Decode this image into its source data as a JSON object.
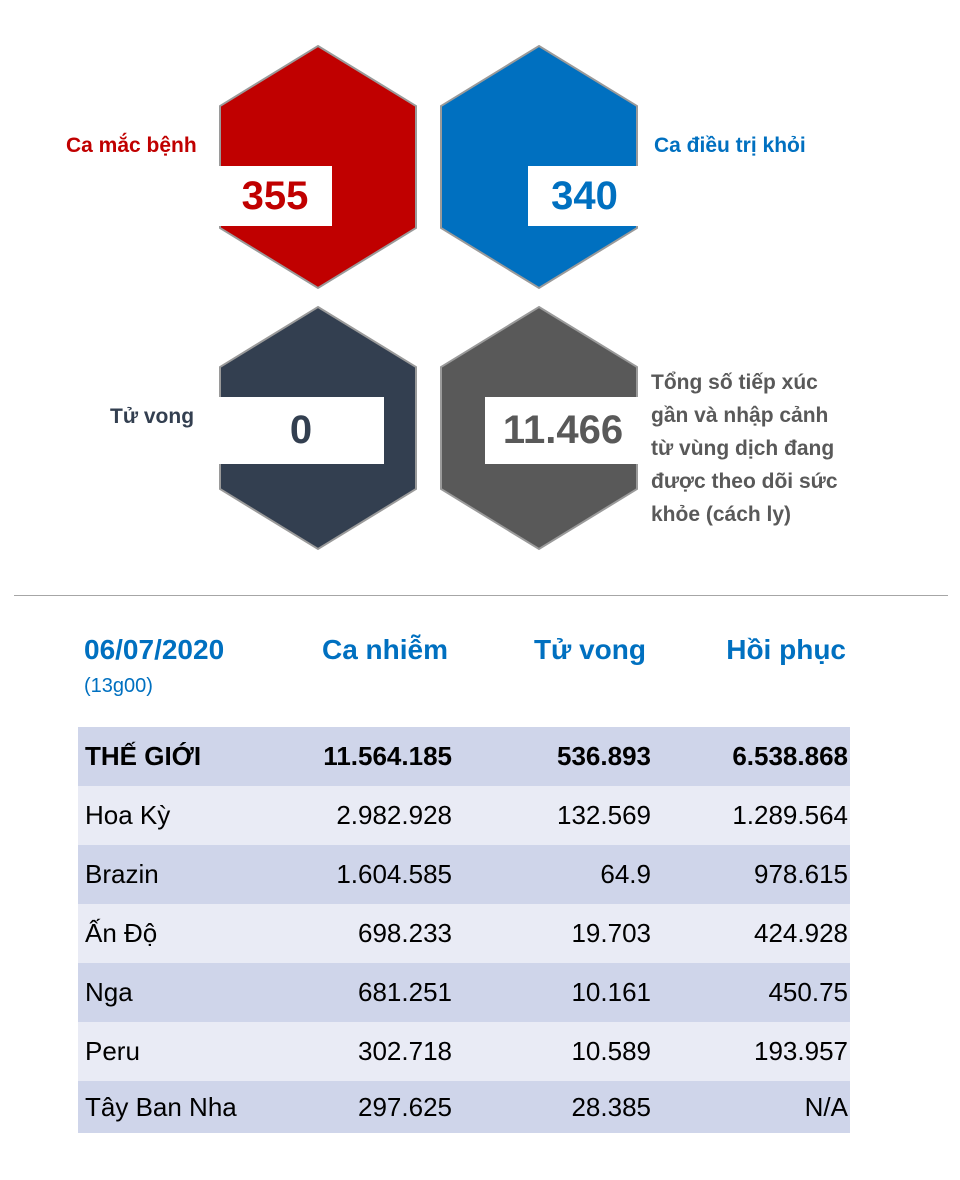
{
  "stats": {
    "cases": {
      "label": "Ca mắc bệnh",
      "value": "355",
      "color": "#c00000"
    },
    "recovered": {
      "label": "Ca điều trị khỏi",
      "value": "340",
      "color": "#0070c0"
    },
    "deaths": {
      "label": "Tử vong",
      "value": "0",
      "color": "#333f50"
    },
    "monitored": {
      "label": "Tổng số tiếp xúc gần và nhập cảnh từ vùng dịch đang được theo dõi sức khỏe (cách ly)",
      "value": "11.466",
      "color": "#595959"
    }
  },
  "table": {
    "date": "06/07/2020",
    "time": "(13g00)",
    "headers": {
      "cases": "Ca nhiễm",
      "deaths": "Tử vong",
      "recovered": "Hồi phục"
    },
    "rows": [
      {
        "country": "THẾ GIỚI",
        "cases": "11.564.185",
        "deaths": "536.893",
        "recovered": "6.538.868"
      },
      {
        "country": "Hoa Kỳ",
        "cases": "2.982.928",
        "deaths": "132.569",
        "recovered": "1.289.564"
      },
      {
        "country": "Brazin",
        "cases": "1.604.585",
        "deaths": "64.9",
        "recovered": "978.615"
      },
      {
        "country": "Ấn Độ",
        "cases": "698.233",
        "deaths": "19.703",
        "recovered": "424.928"
      },
      {
        "country": "Nga",
        "cases": "681.251",
        "deaths": "10.161",
        "recovered": "450.75"
      },
      {
        "country": "Peru",
        "cases": "302.718",
        "deaths": "10.589",
        "recovered": "193.957"
      },
      {
        "country": "Tây Ban Nha",
        "cases": "297.625",
        "deaths": "28.385",
        "recovered": "N/A"
      }
    ]
  }
}
